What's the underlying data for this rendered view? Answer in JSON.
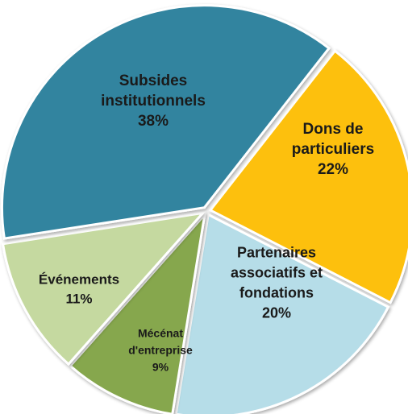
{
  "chart_data": {
    "type": "pie",
    "title": "",
    "slices": [
      {
        "label_lines": [
          "Dons de",
          "particuliers"
        ],
        "value": 22,
        "value_label": "22%",
        "color": "#FDC00F"
      },
      {
        "label_lines": [
          "Partenaires",
          "associatifs et",
          "fondations"
        ],
        "value": 20,
        "value_label": "20%",
        "color": "#B6DDE8"
      },
      {
        "label_lines": [
          "Mécénat",
          "d'entreprise"
        ],
        "value": 9,
        "value_label": "9%",
        "color": "#86A74E"
      },
      {
        "label_lines": [
          "Événements"
        ],
        "value": 11,
        "value_label": "11%",
        "color": "#C5D9A0"
      },
      {
        "label_lines": [
          "Subsides",
          "institutionnels"
        ],
        "value": 38,
        "value_label": "38%",
        "color": "#33849F"
      }
    ],
    "exploded": true,
    "legend": "none"
  }
}
